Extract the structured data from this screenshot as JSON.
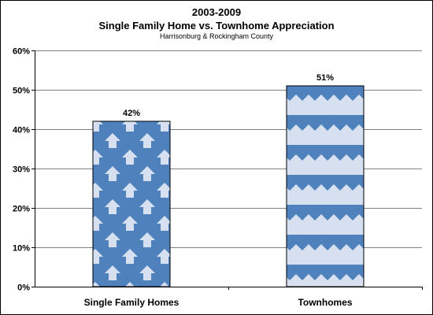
{
  "chart_data": {
    "type": "bar",
    "title": "2003-2009",
    "subtitle": "Single Family Home vs. Townhome Appreciation",
    "subsubtitle": "Harrisonburg & Rockingham County",
    "categories": [
      "Single Family Homes",
      "Townhomes"
    ],
    "values": [
      42,
      51
    ],
    "data_labels": [
      "42%",
      "51%"
    ],
    "ylim": [
      0,
      60
    ],
    "y_ticks": [
      0,
      10,
      20,
      30,
      40,
      50,
      60
    ],
    "y_tick_labels": [
      "0%",
      "10%",
      "20%",
      "30%",
      "40%",
      "50%",
      "60%"
    ],
    "grid": true,
    "legend": "none",
    "colors": {
      "bar_fill": "#4f81bd",
      "pattern": "#d6e0f0",
      "grid": "#808080"
    }
  }
}
